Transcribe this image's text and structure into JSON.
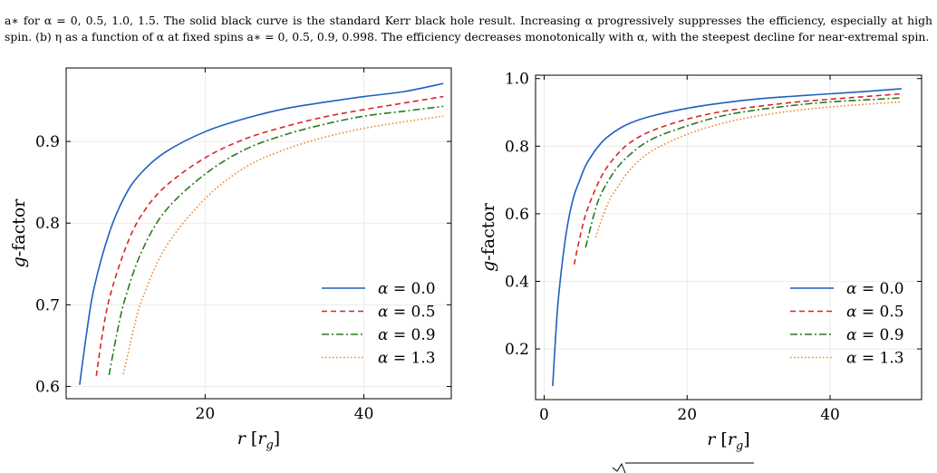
{
  "caption": {
    "text": "a∗ for α = 0, 0.5, 1.0, 1.5. The solid black curve is the standard Kerr black hole result. Increasing α progressively suppresses the efficiency, especially at high spin. (b) η as a function of α at fixed spins a∗ = 0, 0.5, 0.9, 0.998. The efficiency decreases monotonically with α, with the steepest decline for near-extremal spin."
  },
  "colors": {
    "alpha_0.0": "#1f5fbf",
    "alpha_0.5": "#d62728",
    "alpha_0.9": "#2a7a1e",
    "alpha_1.3": "#ef8a2a"
  },
  "chart_data": [
    {
      "type": "line",
      "xlabel": "r [r_g]",
      "ylabel": "g-factor",
      "xlim": [
        2.5,
        51
      ],
      "ylim": [
        0.585,
        0.99
      ],
      "xticks": [
        20,
        40
      ],
      "yticks": [
        0.6,
        0.7,
        0.8,
        0.9
      ],
      "grid": true,
      "legend": "bottom-right",
      "series": [
        {
          "name": "α = 0.0",
          "style": "solid",
          "color_key": "alpha_0.0",
          "x": [
            4.2,
            5,
            6,
            8,
            10,
            12,
            15,
            20,
            25,
            30,
            35,
            40,
            45,
            50
          ],
          "y": [
            0.602,
            0.66,
            0.72,
            0.79,
            0.835,
            0.862,
            0.887,
            0.912,
            0.928,
            0.94,
            0.948,
            0.955,
            0.961,
            0.971
          ]
        },
        {
          "name": "α = 0.5",
          "style": "dashed",
          "color_key": "alpha_0.5",
          "x": [
            6.3,
            7,
            8,
            10,
            12,
            15,
            20,
            25,
            30,
            35,
            40,
            45,
            50
          ],
          "y": [
            0.613,
            0.66,
            0.71,
            0.77,
            0.81,
            0.845,
            0.88,
            0.903,
            0.918,
            0.93,
            0.939,
            0.947,
            0.955
          ]
        },
        {
          "name": "α = 0.9",
          "style": "dashdot",
          "color_key": "alpha_0.9",
          "x": [
            7.9,
            9,
            10,
            12,
            15,
            20,
            25,
            30,
            35,
            40,
            45,
            50
          ],
          "y": [
            0.614,
            0.67,
            0.71,
            0.765,
            0.815,
            0.86,
            0.89,
            0.908,
            0.921,
            0.931,
            0.937,
            0.943
          ]
        },
        {
          "name": "α = 1.3",
          "style": "dotted",
          "color_key": "alpha_1.3",
          "x": [
            9.7,
            11,
            12,
            15,
            20,
            25,
            30,
            35,
            40,
            45,
            50
          ],
          "y": [
            0.615,
            0.67,
            0.705,
            0.77,
            0.83,
            0.868,
            0.89,
            0.905,
            0.916,
            0.924,
            0.931
          ]
        }
      ]
    },
    {
      "type": "line",
      "xlabel": "r [r_g]",
      "ylabel": "g-factor",
      "xlim": [
        -1.2,
        52.8
      ],
      "ylim": [
        0.05,
        1.01
      ],
      "xticks": [
        0,
        20,
        40
      ],
      "yticks": [
        0.2,
        0.4,
        0.6,
        0.8,
        1.0
      ],
      "grid": true,
      "legend": "bottom-right",
      "series": [
        {
          "name": "α = 0.0",
          "style": "solid",
          "color_key": "alpha_0.0",
          "x": [
            1.2,
            1.5,
            2,
            3,
            4,
            5,
            6,
            8,
            10,
            12,
            15,
            20,
            25,
            30,
            35,
            40,
            45,
            50
          ],
          "y": [
            0.09,
            0.2,
            0.35,
            0.53,
            0.64,
            0.7,
            0.75,
            0.81,
            0.845,
            0.868,
            0.889,
            0.912,
            0.928,
            0.94,
            0.948,
            0.955,
            0.962,
            0.97
          ]
        },
        {
          "name": "α = 0.5",
          "style": "dashed",
          "color_key": "alpha_0.5",
          "x": [
            4.2,
            5,
            6,
            8,
            10,
            12,
            15,
            20,
            25,
            30,
            35,
            40,
            45,
            50
          ],
          "y": [
            0.45,
            0.53,
            0.61,
            0.71,
            0.77,
            0.81,
            0.845,
            0.88,
            0.903,
            0.918,
            0.93,
            0.939,
            0.947,
            0.955
          ]
        },
        {
          "name": "α = 0.9",
          "style": "dashdot",
          "color_key": "alpha_0.9",
          "x": [
            5.8,
            7,
            8,
            10,
            12,
            15,
            20,
            25,
            30,
            35,
            40,
            45,
            50
          ],
          "y": [
            0.5,
            0.6,
            0.66,
            0.73,
            0.775,
            0.82,
            0.86,
            0.89,
            0.908,
            0.921,
            0.931,
            0.937,
            0.943
          ]
        },
        {
          "name": "α = 1.3",
          "style": "dotted",
          "color_key": "alpha_1.3",
          "x": [
            7.2,
            8,
            9,
            10,
            12,
            15,
            20,
            25,
            30,
            35,
            40,
            45,
            50
          ],
          "y": [
            0.53,
            0.58,
            0.635,
            0.67,
            0.73,
            0.785,
            0.835,
            0.868,
            0.89,
            0.905,
            0.916,
            0.924,
            0.931
          ]
        }
      ]
    }
  ]
}
